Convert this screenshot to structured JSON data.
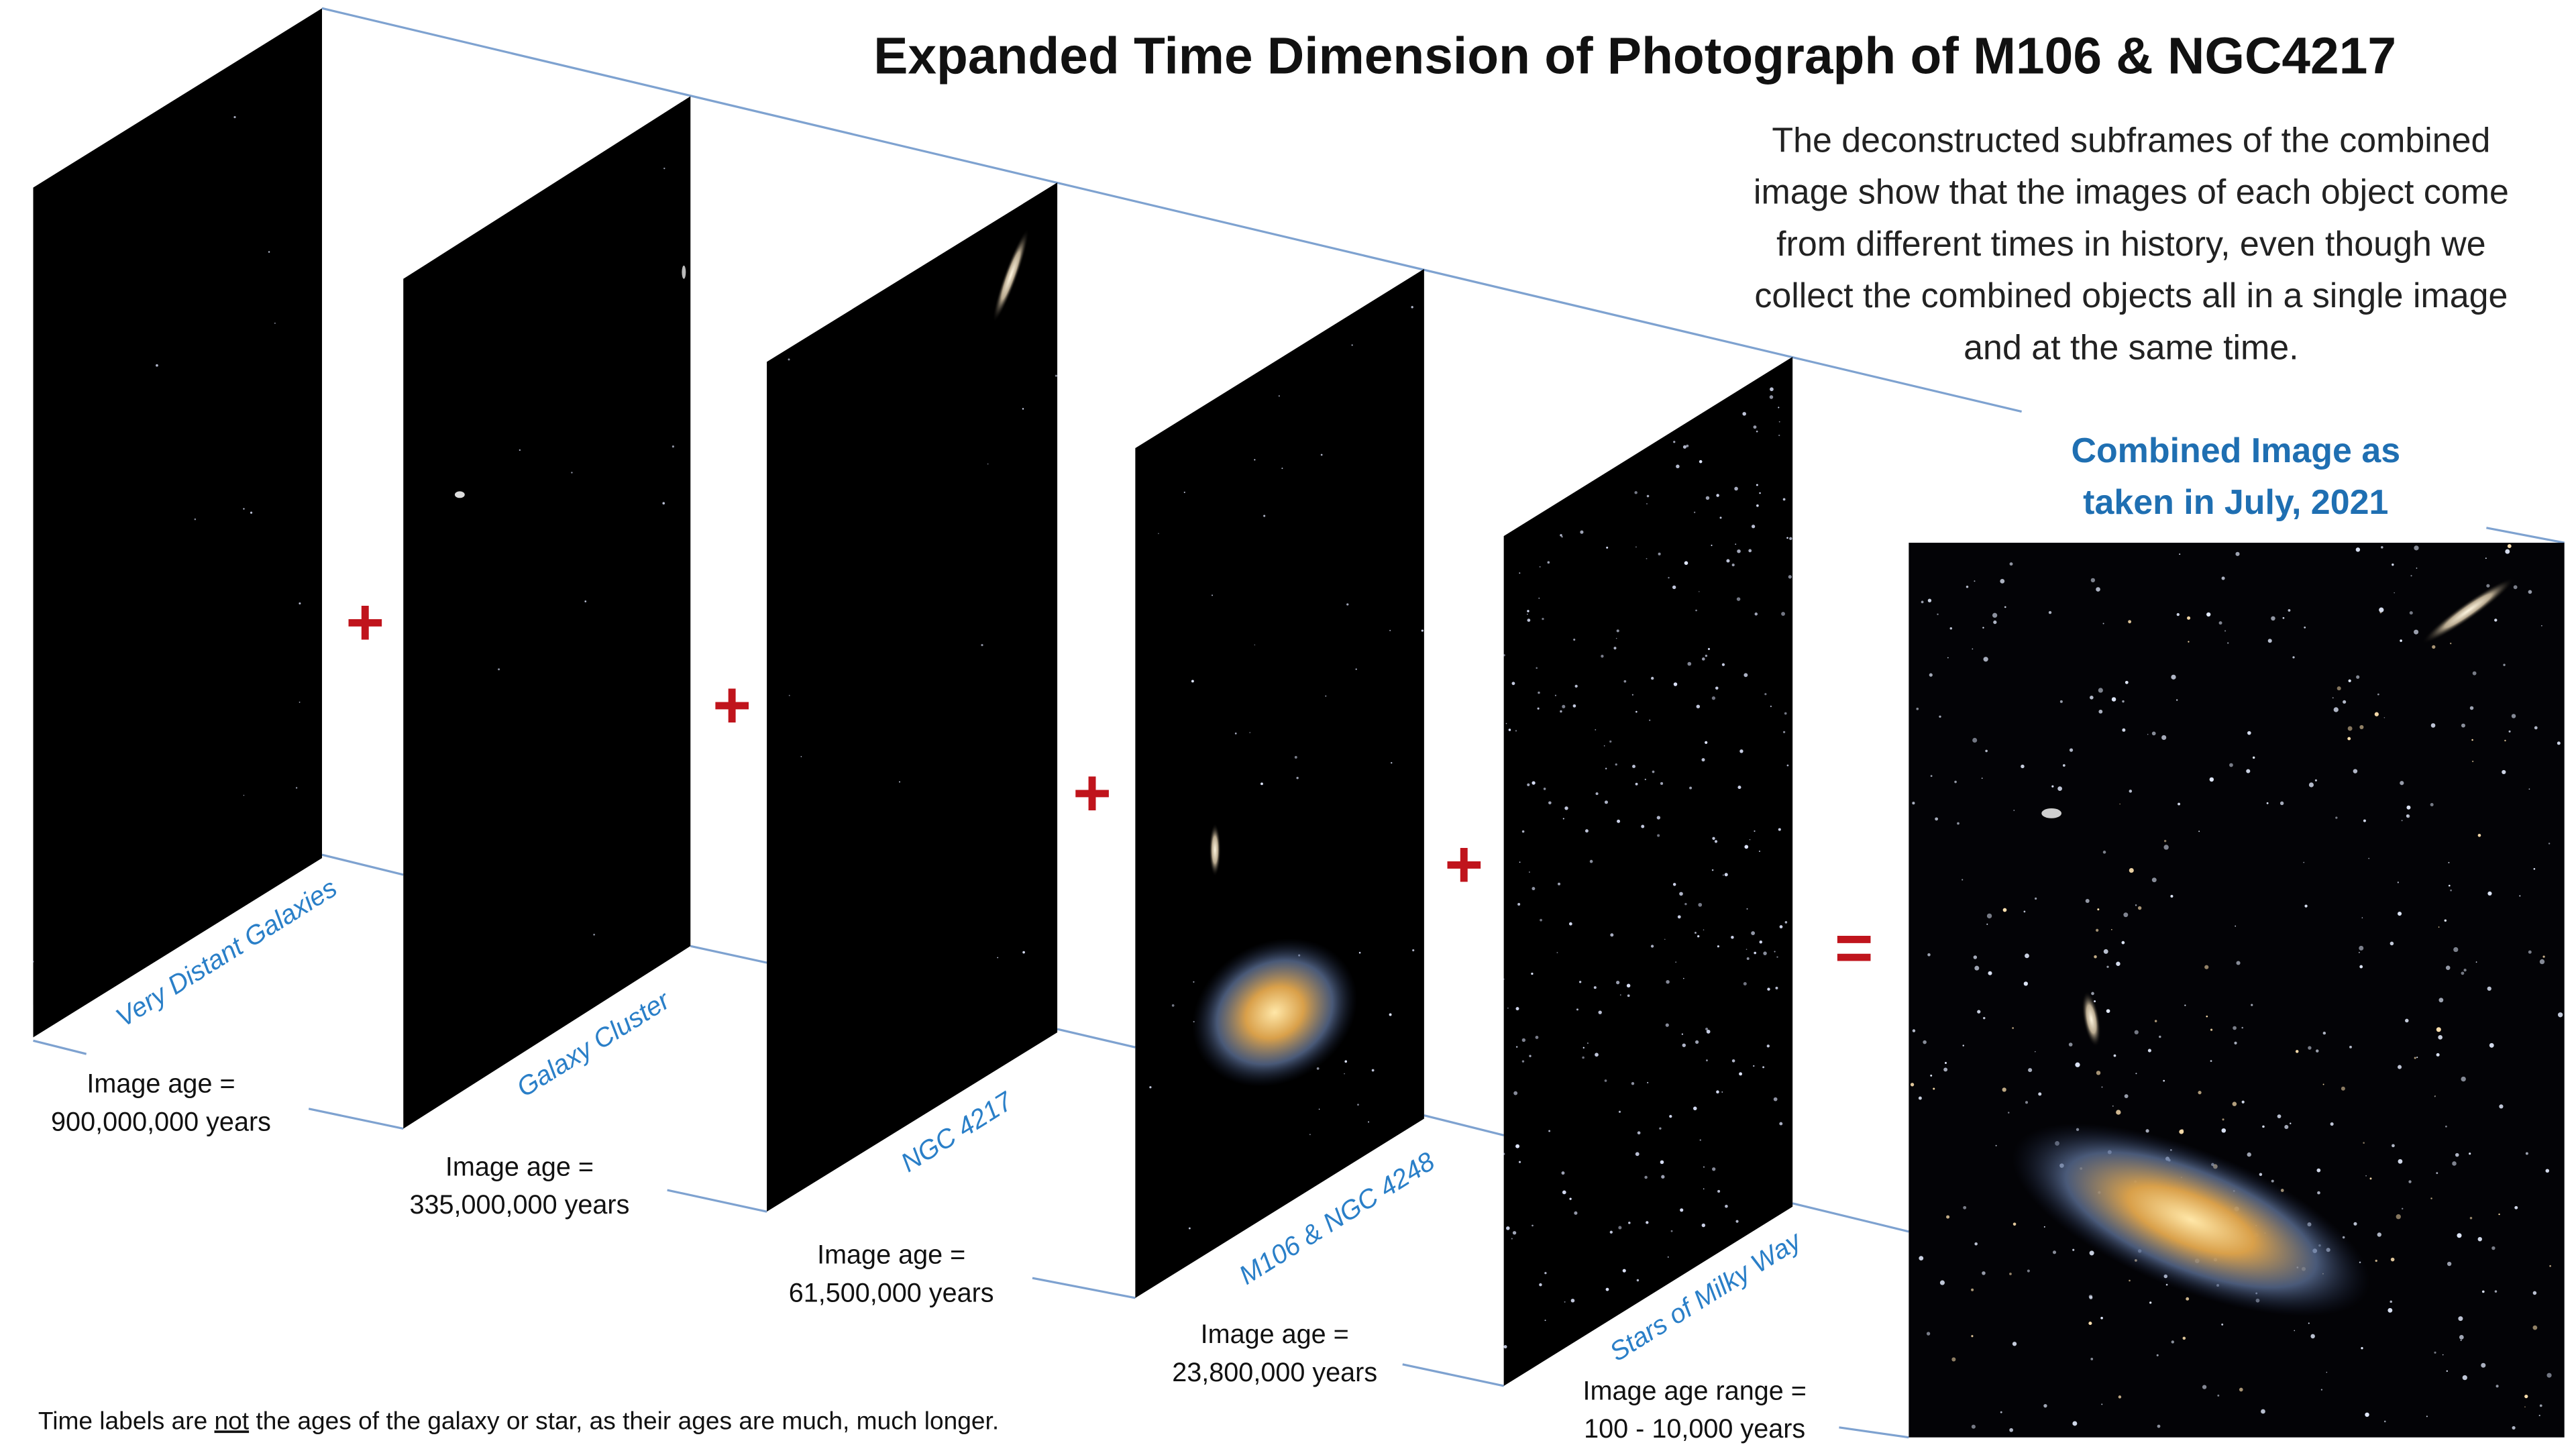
{
  "title": "Expanded Time Dimension of Photograph of M106 & NGC4217",
  "description": [
    "The deconstructed subframes of the combined",
    "image show that the images of each object come",
    "from different times in history, even though we",
    "collect the combined objects all in a single image",
    "and at the same time."
  ],
  "panels": [
    {
      "label": "Very Distant Galaxies",
      "age_lines": [
        "Image age =",
        "900,000,000 years"
      ]
    },
    {
      "label": "Galaxy Cluster",
      "age_lines": [
        "Image age =",
        "335,000,000 years"
      ]
    },
    {
      "label": "NGC 4217",
      "age_lines": [
        "Image age =",
        "61,500,000 years"
      ]
    },
    {
      "label": "M106 & NGC 4248",
      "age_lines": [
        "Image age =",
        "23,800,000 years"
      ]
    },
    {
      "label": "Stars of Milky Way",
      "age_lines": [
        "Image age range =",
        "100 - 10,000 years"
      ]
    }
  ],
  "operators": [
    "+",
    "+",
    "+",
    "+"
  ],
  "equals": "=",
  "combined_caption": [
    "Combined Image as",
    "taken in July, 2021"
  ],
  "footnote": {
    "before": "Time labels are ",
    "emphasis": "not",
    "after": " the ages of the galaxy or star, as their ages are much, much longer."
  }
}
